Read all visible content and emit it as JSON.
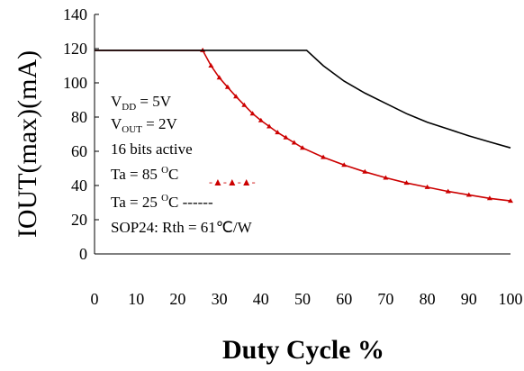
{
  "chart_data": {
    "type": "line",
    "xlabel": "Duty Cycle %",
    "ylabel": "IOUT(max)(mA)",
    "xlim": [
      0,
      100
    ],
    "ylim": [
      0,
      140
    ],
    "x_ticks": [
      "0",
      "10",
      "20",
      "30",
      "40",
      "50",
      "60",
      "70",
      "80",
      "90",
      "100"
    ],
    "y_ticks": [
      "0",
      "20",
      "40",
      "60",
      "80",
      "100",
      "120",
      "140"
    ],
    "grid": false,
    "series": [
      {
        "name": "Ta = 85 OC",
        "color": "#cc0000",
        "marker": "triangle",
        "x": [
          0,
          5,
          10,
          15,
          20,
          25,
          26,
          28,
          30,
          32,
          34,
          36,
          38,
          40,
          42,
          44,
          46,
          48,
          50,
          55,
          60,
          65,
          70,
          75,
          80,
          85,
          90,
          95,
          100
        ],
        "y": [
          119,
          119,
          119,
          119,
          119,
          119,
          119,
          110,
          103,
          97.5,
          92,
          87,
          82,
          78,
          74.5,
          71,
          68,
          65,
          62,
          56.5,
          52,
          48,
          44.5,
          41.5,
          39,
          36.5,
          34.5,
          32.5,
          31
        ]
      },
      {
        "name": "Ta = 25 OC",
        "color": "#000000",
        "marker": "none",
        "x": [
          0,
          5,
          10,
          15,
          20,
          25,
          30,
          35,
          40,
          45,
          50,
          51,
          55,
          60,
          65,
          70,
          75,
          80,
          85,
          90,
          95,
          100
        ],
        "y": [
          119,
          119,
          119,
          119,
          119,
          119,
          119,
          119,
          119,
          119,
          119,
          119,
          110,
          101,
          94,
          88,
          82,
          77,
          73,
          69,
          65.5,
          62
        ]
      }
    ]
  },
  "annotations": {
    "vdd": {
      "main": "V",
      "sub": "DD",
      "rest": " = 5V"
    },
    "vout": {
      "main": "V",
      "sub": "OUT",
      "rest": " = 2V"
    },
    "bits": "16 bits active",
    "ta85": {
      "main": "Ta = 85 ",
      "sup": "O",
      "rest": "C",
      "legend": "-▲-▲-▲-"
    },
    "ta25": {
      "main": "Ta = 25 ",
      "sup": "O",
      "rest": "C",
      "legend": " ------"
    },
    "rth": "SOP24: Rth = 61℃/W"
  }
}
